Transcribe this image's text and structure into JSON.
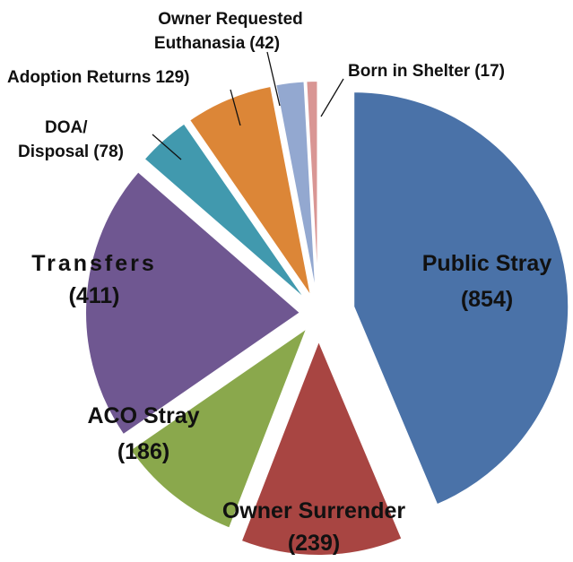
{
  "chart_data": {
    "type": "pie",
    "categories": [
      "Public Stray",
      "Owner Surrender",
      "ACO Stray",
      "Transfers",
      "DOA/ Disposal",
      "Adoption Returns",
      "Owner Requested Euthanasia",
      "Born in Shelter"
    ],
    "values": [
      854,
      239,
      186,
      411,
      78,
      129,
      42,
      17
    ],
    "value_labels": [
      "(854)",
      "(239)",
      "(186)",
      "(411)",
      "(78)",
      "129)",
      "(42)",
      "(17)"
    ],
    "colors": [
      "#4a72a8",
      "#a84542",
      "#8aa84c",
      "#6f5791",
      "#4199ae",
      "#dc8637",
      "#93a8d0",
      "#d99694"
    ]
  }
}
